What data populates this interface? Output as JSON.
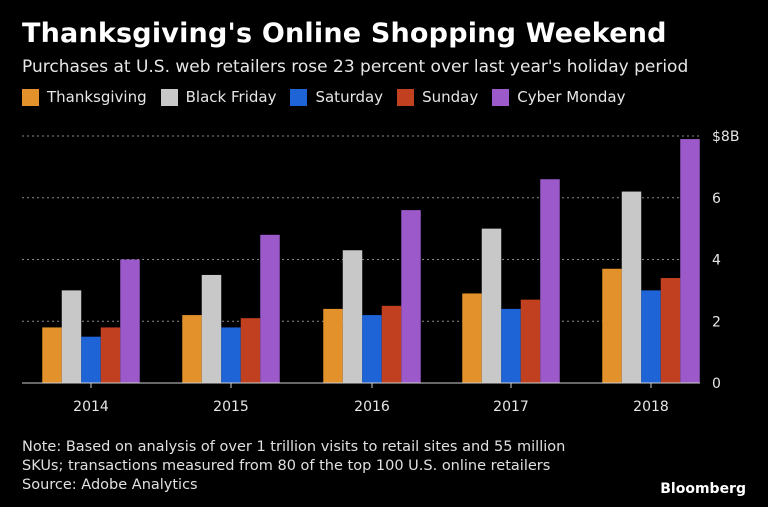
{
  "header": {
    "title": "Thanksgiving's Online Shopping Weekend",
    "subtitle": "Purchases at U.S. web retailers rose 23 percent over last year's holiday period"
  },
  "colors": {
    "Thanksgiving": "#e3922b",
    "Black Friday": "#c8c8c8",
    "Saturday": "#1f64d6",
    "Sunday": "#c0401f",
    "Cyber Monday": "#9b59c9",
    "background": "#000000",
    "grid": "#8a8a8a"
  },
  "chart_data": {
    "type": "bar",
    "title": "Thanksgiving's Online Shopping Weekend",
    "subtitle": "Purchases at U.S. web retailers rose 23 percent over last year's holiday period",
    "xlabel": "",
    "ylabel": "",
    "categories": [
      "2014",
      "2015",
      "2016",
      "2017",
      "2018"
    ],
    "series": [
      {
        "name": "Thanksgiving",
        "values": [
          1.8,
          2.2,
          2.4,
          2.9,
          3.7
        ]
      },
      {
        "name": "Black Friday",
        "values": [
          3.0,
          3.5,
          4.3,
          5.0,
          6.2
        ]
      },
      {
        "name": "Saturday",
        "values": [
          1.5,
          1.8,
          2.2,
          2.4,
          3.0
        ]
      },
      {
        "name": "Sunday",
        "values": [
          1.8,
          2.1,
          2.5,
          2.7,
          3.4
        ]
      },
      {
        "name": "Cyber Monday",
        "values": [
          4.0,
          4.8,
          5.6,
          6.6,
          7.9
        ]
      }
    ],
    "ylim": [
      0,
      8
    ],
    "yticks": [
      0,
      2,
      4,
      6,
      8
    ],
    "ytick_labels": [
      "0",
      "2",
      "4",
      "6",
      "$8B"
    ],
    "grid": true,
    "legend": "top-left",
    "yaxis_side": "right"
  },
  "footer": {
    "note_line1": "Note: Based on analysis of over 1 trillion visits to retail sites and 55 million",
    "note_line2": "SKUs; transactions measured from 80 of the top 100 U.S. online retailers",
    "source": "Source: Adobe Analytics",
    "brand": "Bloomberg"
  }
}
